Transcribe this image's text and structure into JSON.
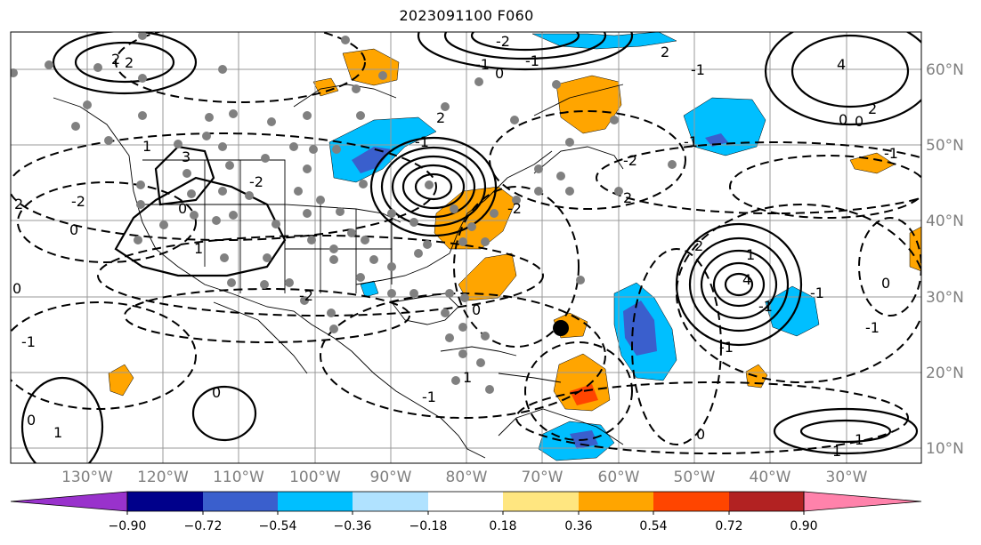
{
  "title": "2023091100 F060",
  "map": {
    "lat_labels": [
      "60°N",
      "50°N",
      "40°N",
      "30°N",
      "20°N",
      "10°N"
    ],
    "lat_values": [
      60,
      50,
      40,
      30,
      20,
      10
    ],
    "lon_labels": [
      "130°W",
      "120°W",
      "110°W",
      "100°W",
      "90°W",
      "80°W",
      "70°W",
      "60°W",
      "50°W",
      "40°W",
      "30°W"
    ],
    "lon_values": [
      -130,
      -120,
      -110,
      -100,
      -90,
      -80,
      -70,
      -60,
      -50,
      -40,
      -30
    ],
    "contour_labels": [
      "2",
      "2",
      "3",
      "1",
      "0",
      "-2",
      "2",
      "0",
      "-1",
      "1",
      "0",
      "-2",
      "2",
      "-1",
      "4",
      "2",
      "0",
      "-1",
      "2",
      "-1",
      "-2",
      "0",
      "-1",
      "1",
      "2",
      "-2",
      "-1",
      "0",
      "-1",
      "1",
      "4",
      "-1",
      "2",
      "0",
      "-1",
      "1",
      "-1",
      "0",
      "1",
      "0",
      "-2",
      "-2",
      "0",
      "-1",
      "-1",
      "0",
      "1"
    ]
  },
  "colorbar": {
    "ticks": [
      "−0.90",
      "−0.72",
      "−0.54",
      "−0.36",
      "−0.18",
      "0.18",
      "0.36",
      "0.54",
      "0.72",
      "0.90"
    ],
    "colors": [
      "#9932cc",
      "#00008b",
      "#3a5fcd",
      "#00bfff",
      "#b0e2ff",
      "#ffffff",
      "#ffe680",
      "#ffa500",
      "#ff4500",
      "#b22222",
      "#ff82ab"
    ]
  }
}
